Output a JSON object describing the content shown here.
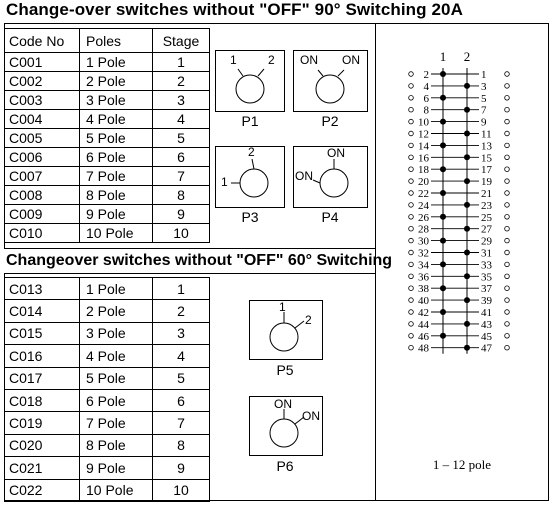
{
  "title_top": "Change-over switches without \"OFF\" 90° Switching  20A",
  "title_mid": "Changeover switches without \"OFF\" 60° Switching",
  "table1": {
    "headers": [
      "Code No",
      "Poles",
      "Stage"
    ],
    "rows": [
      [
        "C001",
        "1 Pole",
        "1"
      ],
      [
        "C002",
        "2 Pole",
        "2"
      ],
      [
        "C003",
        "3 Pole",
        "3"
      ],
      [
        "C004",
        "4 Pole",
        "4"
      ],
      [
        "C005",
        "5 Pole",
        "5"
      ],
      [
        "C006",
        "6 Pole",
        "6"
      ],
      [
        "C007",
        "7 Pole",
        "7"
      ],
      [
        "C008",
        "8 Pole",
        "8"
      ],
      [
        "C009",
        "9 Pole",
        "9"
      ],
      [
        "C010",
        "10 Pole",
        "10"
      ]
    ]
  },
  "table2": {
    "rows": [
      [
        "C013",
        "1 Pole",
        "1"
      ],
      [
        "C014",
        "2 Pole",
        "2"
      ],
      [
        "C015",
        "3 Pole",
        "3"
      ],
      [
        "C016",
        "4 Pole",
        "4"
      ],
      [
        "C017",
        "5 Pole",
        "5"
      ],
      [
        "C018",
        "6 Pole",
        "6"
      ],
      [
        "C019",
        "7 Pole",
        "7"
      ],
      [
        "C020",
        "8 Pole",
        "8"
      ],
      [
        "C021",
        "9 Pole",
        "9"
      ],
      [
        "C022",
        "10 Pole",
        "10"
      ]
    ]
  },
  "positions": {
    "p1": {
      "name": "P1",
      "labels": [
        "1",
        "2"
      ]
    },
    "p2": {
      "name": "P2",
      "labels": [
        "ON",
        "ON"
      ]
    },
    "p3": {
      "name": "P3",
      "labels": [
        "2",
        "1"
      ]
    },
    "p4": {
      "name": "P4",
      "labels": [
        "ON",
        "ON"
      ]
    },
    "p5": {
      "name": "P5",
      "labels": [
        "1",
        "2"
      ]
    },
    "p6": {
      "name": "P6",
      "labels": [
        "ON",
        "ON"
      ]
    }
  },
  "wiring": {
    "col_headers": [
      "1",
      "2"
    ],
    "left_terminals": [
      "2",
      "4",
      "6",
      "8",
      "10",
      "12",
      "14",
      "16",
      "18",
      "20",
      "22",
      "24",
      "26",
      "28",
      "30",
      "32",
      "34",
      "36",
      "38",
      "40",
      "42",
      "44",
      "46",
      "48"
    ],
    "right_terminals": [
      "1",
      "3",
      "5",
      "7",
      "9",
      "11",
      "13",
      "15",
      "17",
      "19",
      "21",
      "23",
      "25",
      "27",
      "29",
      "31",
      "33",
      "35",
      "37",
      "39",
      "41",
      "43",
      "45",
      "47"
    ],
    "caption": "1 – 12 pole"
  }
}
